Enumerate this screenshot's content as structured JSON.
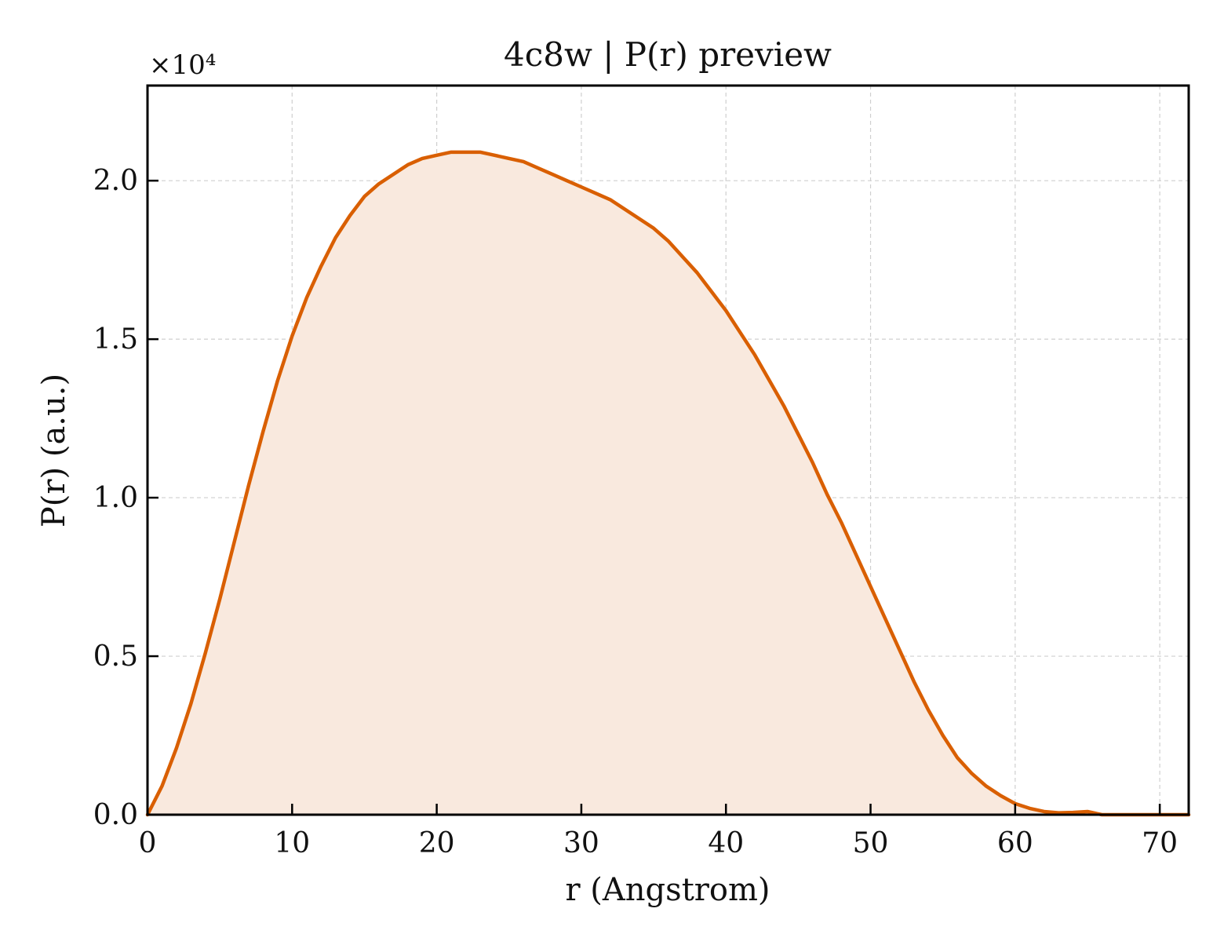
{
  "chart_data": {
    "type": "area",
    "title": "4c8w | P(r) preview",
    "xlabel": "r (Angstrom)",
    "ylabel": "P(r) (a.u.)",
    "y_offset_label": "×10⁴",
    "xlim": [
      0,
      72
    ],
    "ylim": [
      0,
      2.3
    ],
    "x_ticks": [
      0,
      10,
      20,
      30,
      40,
      50,
      60,
      70
    ],
    "x_tick_labels": [
      "0",
      "10",
      "20",
      "30",
      "40",
      "50",
      "60",
      "70"
    ],
    "y_ticks": [
      0,
      0.5,
      1.0,
      1.5,
      2.0
    ],
    "y_tick_labels": [
      "0.0",
      "0.5",
      "1.0",
      "1.5",
      "2.0"
    ],
    "grid": true,
    "line_color": "#d95f02",
    "fill_color": "#f9e9de",
    "series": [
      {
        "x": [
          0,
          1,
          2,
          3,
          4,
          5,
          6,
          7,
          8,
          9,
          10,
          11,
          12,
          13,
          14,
          15,
          16,
          17,
          18,
          19,
          20,
          21,
          22,
          23,
          24,
          25,
          26,
          27,
          28,
          29,
          30,
          31,
          32,
          33,
          34,
          35,
          36,
          37,
          38,
          39,
          40,
          41,
          42,
          43,
          44,
          45,
          46,
          47,
          48,
          49,
          50,
          51,
          52,
          53,
          54,
          55,
          56,
          57,
          58,
          59,
          60,
          61,
          62,
          63,
          64,
          65,
          66,
          67,
          68,
          69,
          70,
          71,
          72
        ],
        "values": [
          0.0,
          0.09,
          0.21,
          0.35,
          0.51,
          0.68,
          0.86,
          1.04,
          1.21,
          1.37,
          1.51,
          1.63,
          1.73,
          1.82,
          1.89,
          1.95,
          1.99,
          2.02,
          2.05,
          2.07,
          2.08,
          2.09,
          2.09,
          2.09,
          2.08,
          2.07,
          2.06,
          2.04,
          2.02,
          2.0,
          1.98,
          1.96,
          1.94,
          1.91,
          1.88,
          1.85,
          1.81,
          1.76,
          1.71,
          1.65,
          1.59,
          1.52,
          1.45,
          1.37,
          1.29,
          1.2,
          1.11,
          1.01,
          0.92,
          0.82,
          0.72,
          0.62,
          0.52,
          0.42,
          0.33,
          0.25,
          0.18,
          0.13,
          0.09,
          0.06,
          0.035,
          0.02,
          0.01,
          0.006,
          0.007,
          0.01,
          0.0,
          0.0,
          0.0,
          0.0,
          0.0,
          0.0,
          0.0
        ]
      }
    ]
  }
}
